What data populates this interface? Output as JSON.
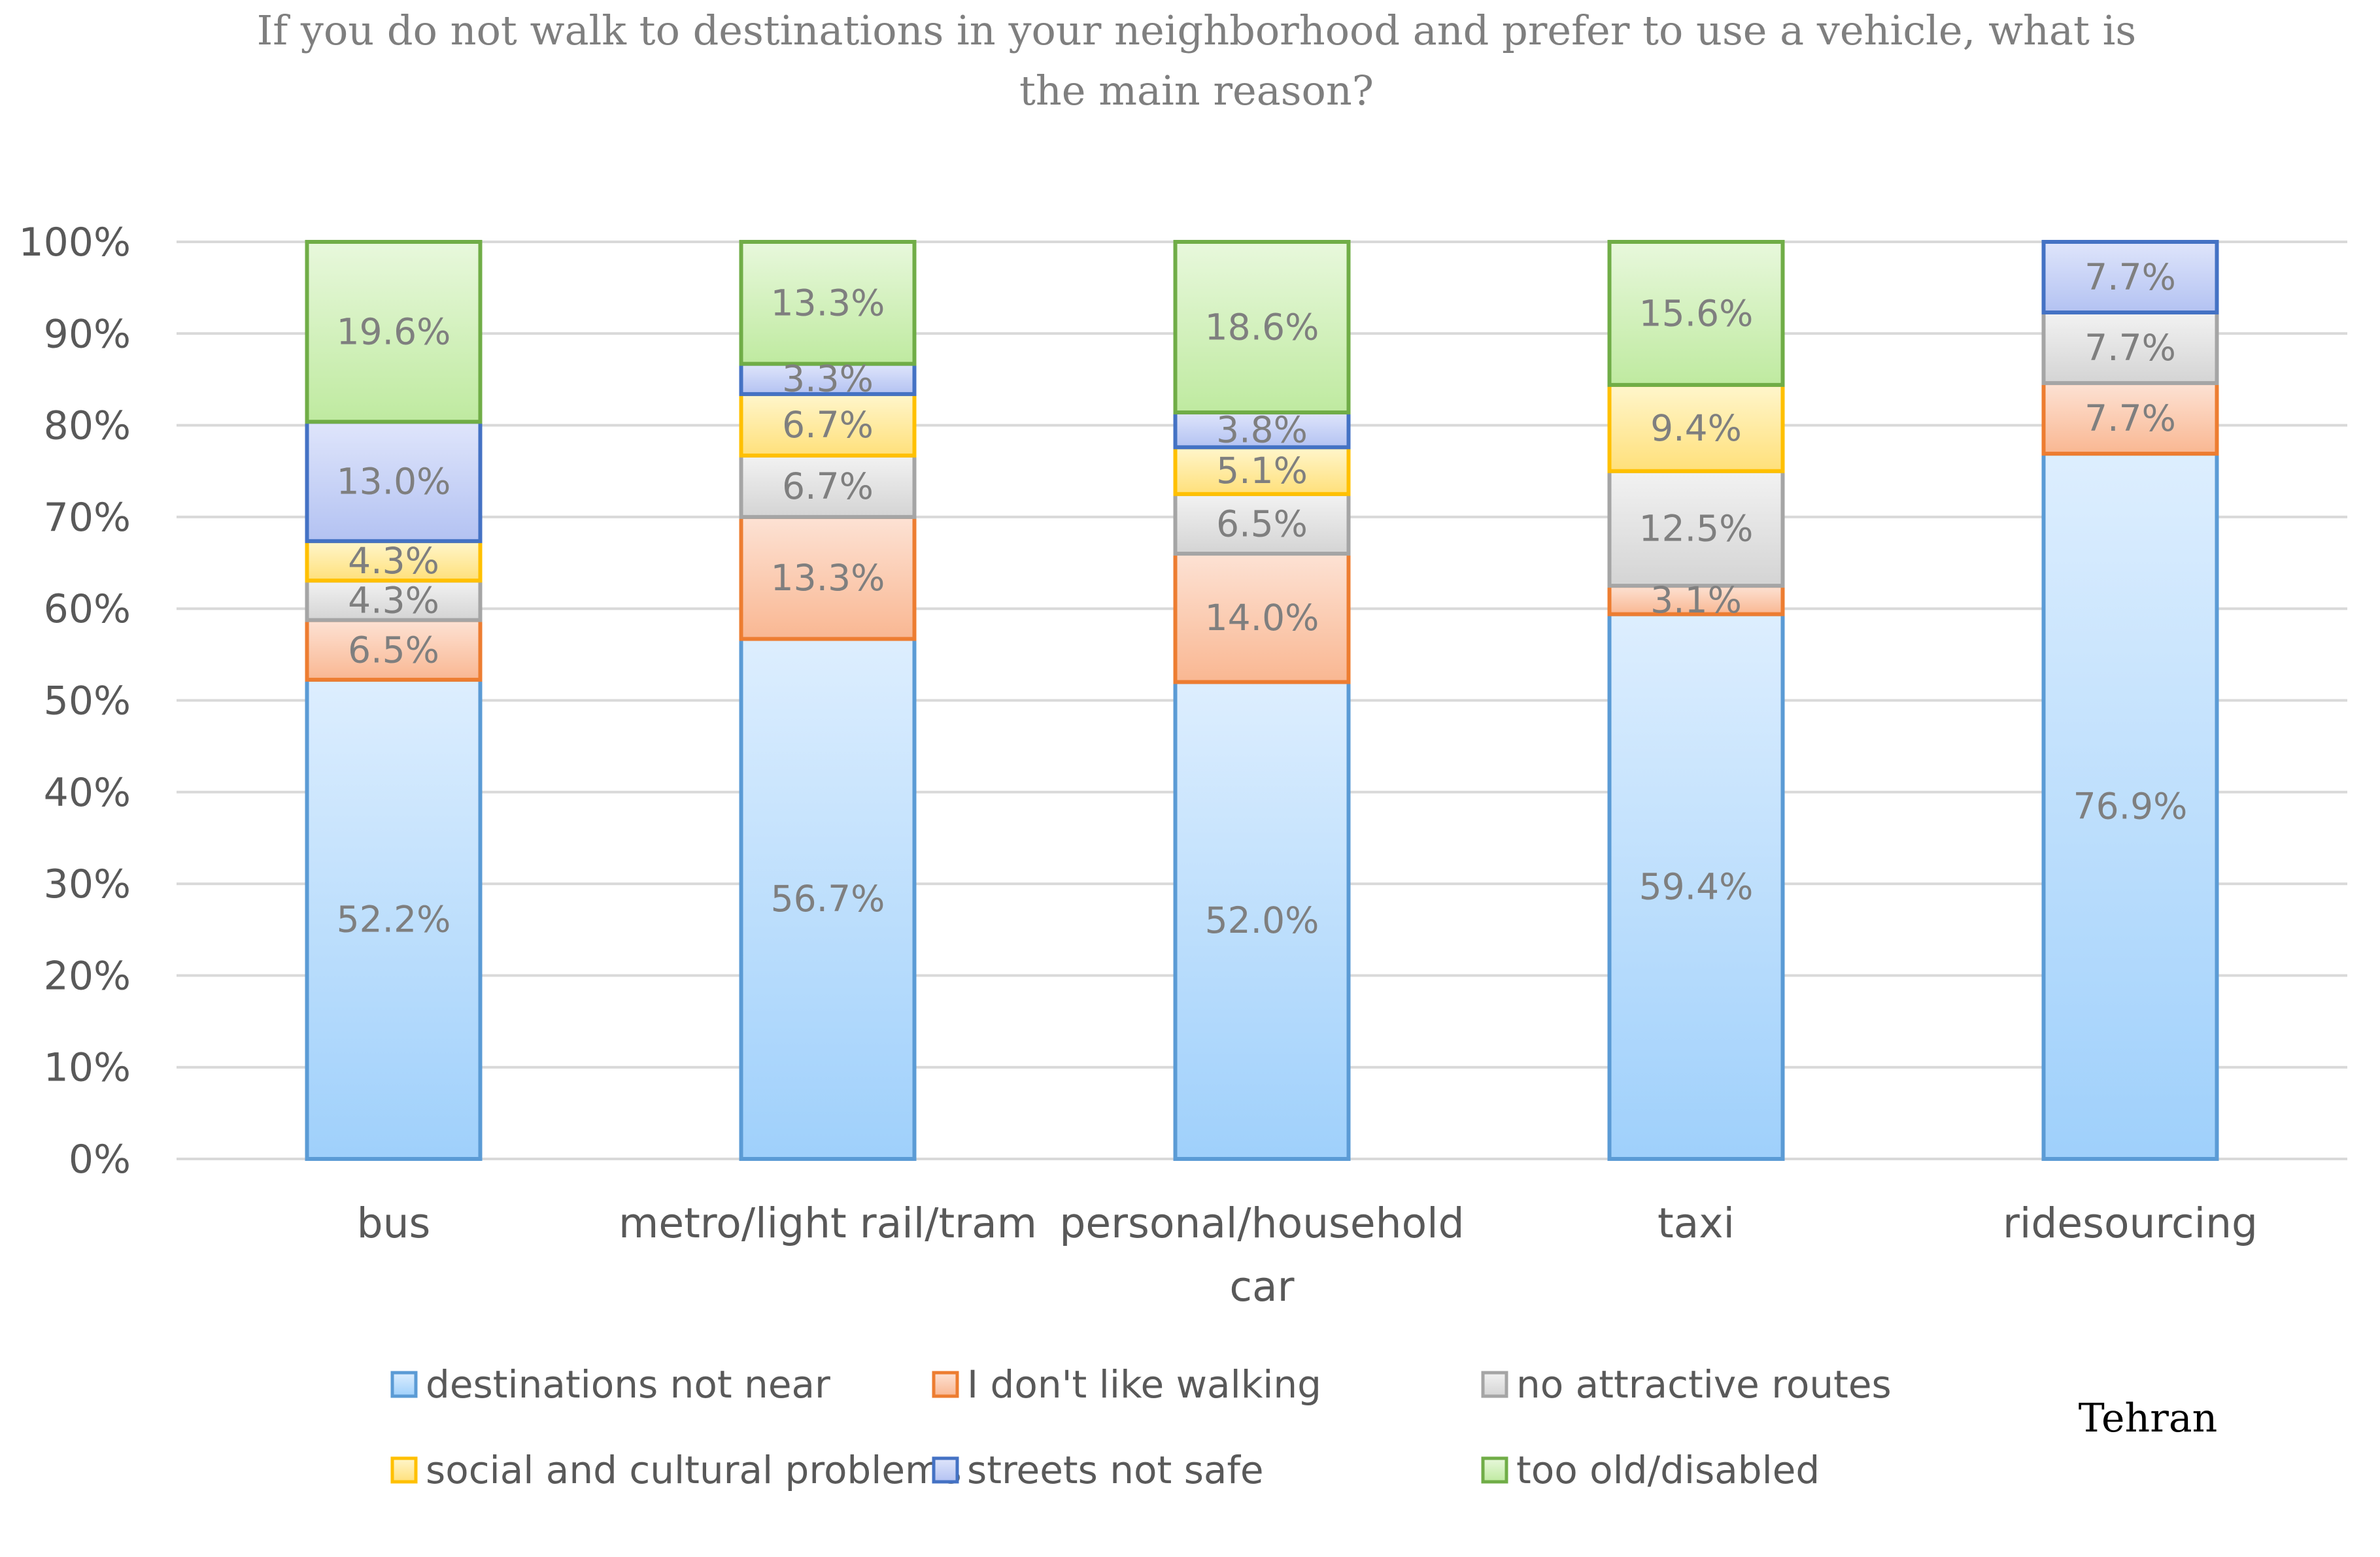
{
  "chart_data": {
    "type": "bar",
    "stacked": true,
    "normalized": true,
    "title_lines": [
      "If you do not walk to destinations in your neighborhood and prefer to use a vehicle, what is",
      "the main reason?"
    ],
    "categories": [
      "bus",
      "metro/light rail/tram",
      "personal/household car",
      "taxi",
      "ridesourcing"
    ],
    "category_label_lines": [
      [
        "bus"
      ],
      [
        "metro/light rail/tram"
      ],
      [
        "personal/household",
        "car"
      ],
      [
        "taxi"
      ],
      [
        "ridesourcing"
      ]
    ],
    "ylim": [
      0,
      100
    ],
    "yticks": [
      0,
      10,
      20,
      30,
      40,
      50,
      60,
      70,
      80,
      90,
      100
    ],
    "ytick_labels": [
      "0%",
      "10%",
      "20%",
      "30%",
      "40%",
      "50%",
      "60%",
      "70%",
      "80%",
      "90%",
      "100%"
    ],
    "grid": true,
    "legend_position": "bottom",
    "series": [
      {
        "name": "destinations not near",
        "values": [
          52.2,
          56.7,
          52.0,
          59.4,
          76.9
        ],
        "labels": [
          "52.2%",
          "56.7%",
          "52.0%",
          "59.4%",
          "76.9%"
        ],
        "fill_top": "#ddeefe",
        "fill_bottom": "#9fd0fb",
        "stroke": "#5b9bd5"
      },
      {
        "name": "I don't like walking",
        "values": [
          6.5,
          13.3,
          14.0,
          3.1,
          7.7
        ],
        "labels": [
          "6.5%",
          "13.3%",
          "14.0%",
          "3.1%",
          "7.7%"
        ],
        "fill_top": "#fde2d4",
        "fill_bottom": "#f9b792",
        "stroke": "#ed7d31"
      },
      {
        "name": "no attractive routes",
        "values": [
          4.3,
          6.7,
          6.5,
          12.5,
          7.7
        ],
        "labels": [
          "4.3%",
          "6.7%",
          "6.5%",
          "12.5%",
          "7.7%"
        ],
        "fill_top": "#f2f2f2",
        "fill_bottom": "#d4d4d4",
        "stroke": "#a5a5a5"
      },
      {
        "name": "social and cultural problems",
        "values": [
          4.3,
          6.7,
          5.1,
          9.4,
          0
        ],
        "labels": [
          "4.3%",
          "6.7%",
          "5.1%",
          "9.4%",
          ""
        ],
        "fill_top": "#fff6cc",
        "fill_bottom": "#ffe07a",
        "stroke": "#ffc000"
      },
      {
        "name": "streets not safe",
        "values": [
          13.0,
          3.3,
          3.8,
          0,
          7.7
        ],
        "labels": [
          "13.0%",
          "3.3%",
          "3.8%",
          "",
          "7.7%"
        ],
        "fill_top": "#dfe5fb",
        "fill_bottom": "#b3c2f2",
        "stroke": "#4472c4"
      },
      {
        "name": "too old/disabled",
        "values": [
          19.6,
          13.3,
          18.6,
          15.6,
          0
        ],
        "labels": [
          "19.6%",
          "13.3%",
          "18.6%",
          "15.6%",
          ""
        ],
        "fill_top": "#e8f8dc",
        "fill_bottom": "#bfeaa0",
        "stroke": "#70ad47"
      }
    ],
    "annotation": "Tehran"
  }
}
